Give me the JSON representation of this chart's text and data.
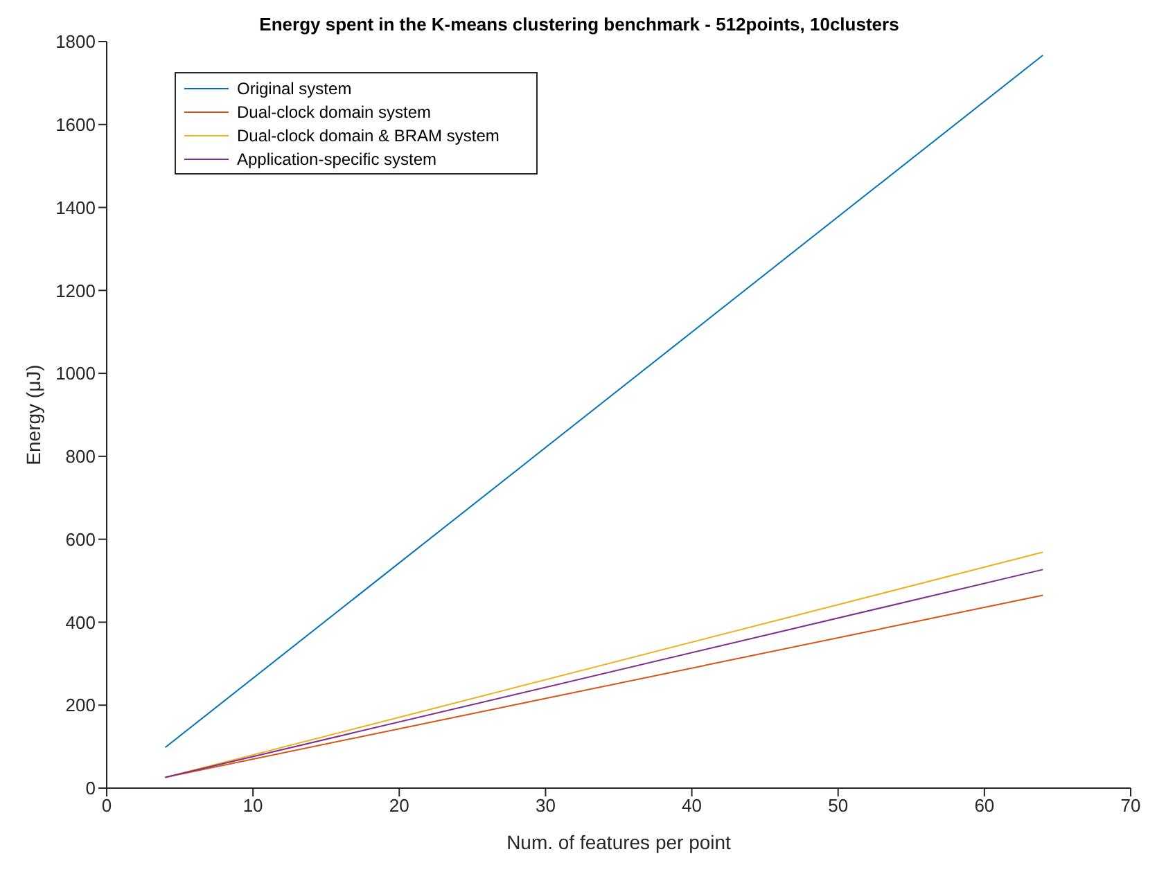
{
  "chart_data": {
    "type": "line",
    "title": "Energy spent in the K-means clustering benchmark - 512points, 10clusters",
    "xlabel": "Num. of features per point",
    "ylabel": "Energy (μJ)",
    "x": [
      4,
      64
    ],
    "series": [
      {
        "name": "Original system",
        "color": "#0072bd",
        "values": [
          98,
          1767
        ]
      },
      {
        "name": "Dual-clock domain system",
        "color": "#d95319",
        "values": [
          26,
          465
        ]
      },
      {
        "name": "Dual-clock domain & BRAM system",
        "color": "#edb120",
        "values": [
          26,
          569
        ]
      },
      {
        "name": "Application-specific system",
        "color": "#7e2f8e",
        "values": [
          26,
          527
        ]
      }
    ],
    "xlim": [
      0,
      70
    ],
    "xticks": [
      0,
      10,
      20,
      30,
      40,
      50,
      60,
      70
    ],
    "ylim": [
      0,
      1800
    ],
    "yticks": [
      0,
      200,
      400,
      600,
      800,
      1000,
      1200,
      1400,
      1600,
      1800
    ],
    "grid": false,
    "legend": "top left",
    "marker": "none",
    "line_style": "solid"
  }
}
